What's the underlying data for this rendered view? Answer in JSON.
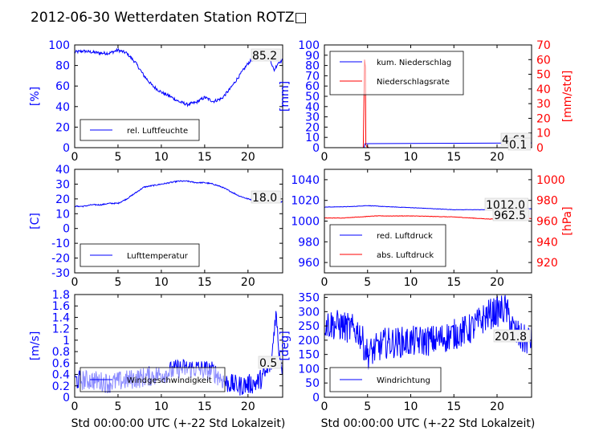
{
  "figure": {
    "title": "2012-06-30 Wetterdaten Station ROTZ",
    "title_glyph": "□",
    "xlabel": "Std 00:00:00 UTC (+-22 Std Lokalzeit)"
  },
  "colors": {
    "left_axis": "#0000ff",
    "right_axis": "#ff0000",
    "text": "#000000"
  },
  "chart_data": [
    {
      "id": "humidity",
      "type": "line",
      "xlim": [
        0,
        24
      ],
      "xticks": [
        0,
        5,
        10,
        15,
        20
      ],
      "ylim": [
        0,
        100
      ],
      "yticks": [
        0,
        20,
        40,
        60,
        80,
        100
      ],
      "ylabel": "[%]",
      "legend_position": "lower-left",
      "annotation": "85.2",
      "series": [
        {
          "name": "rel. Luftfeuchte",
          "color": "#0000ff",
          "axis": "left",
          "noise": 1.5,
          "x": [
            0,
            1,
            2,
            3,
            4,
            5,
            6,
            7,
            8,
            9,
            10,
            11,
            12,
            13,
            14,
            15,
            16,
            17,
            18,
            19,
            20,
            21,
            22,
            22.5,
            23,
            23.5,
            24
          ],
          "y": [
            93,
            94,
            93,
            92,
            92,
            95,
            92,
            83,
            70,
            60,
            54,
            50,
            45,
            42,
            44,
            49,
            45,
            48,
            58,
            70,
            82,
            90,
            95,
            88,
            75,
            83,
            85.2
          ]
        }
      ]
    },
    {
      "id": "precipitation",
      "type": "line",
      "xlim": [
        0,
        24
      ],
      "xticks": [
        0,
        5,
        10,
        15,
        20
      ],
      "ylim": [
        0,
        100
      ],
      "yticks": [
        0,
        10,
        20,
        30,
        40,
        50,
        60,
        70,
        80,
        90,
        100
      ],
      "ylabel": "[mm]",
      "y2lim": [
        0,
        70
      ],
      "y2ticks": [
        0,
        10,
        20,
        30,
        40,
        50,
        60,
        70
      ],
      "y2label": "[mm/std]",
      "legend_position": "top-left",
      "annotation": "4.61",
      "annotation2": "0.1",
      "series": [
        {
          "name": "kum. Niederschlag",
          "color": "#0000ff",
          "axis": "left",
          "noise": 0,
          "x": [
            0,
            4.6,
            4.7,
            4.9,
            24
          ],
          "y": [
            0,
            0,
            3.8,
            3.9,
            4.61
          ]
        },
        {
          "name": "Niederschlagsrate",
          "color": "#ff0000",
          "axis": "right",
          "noise": 0,
          "x": [
            0,
            4.5,
            4.65,
            4.75,
            4.8,
            4.95,
            5.2,
            22.5,
            23,
            23.5,
            24
          ],
          "y": [
            0,
            0,
            60,
            55,
            2,
            0.5,
            0,
            0,
            2,
            0.5,
            0.1
          ]
        }
      ]
    },
    {
      "id": "temperature",
      "type": "line",
      "xlim": [
        0,
        24
      ],
      "xticks": [
        0,
        5,
        10,
        15,
        20
      ],
      "ylim": [
        -30,
        40
      ],
      "yticks": [
        -30,
        -20,
        -10,
        0,
        10,
        20,
        30,
        40
      ],
      "ylabel": "[C]",
      "legend_position": "lower-left",
      "annotation": "18.0",
      "series": [
        {
          "name": "Lufttemperatur",
          "color": "#0000ff",
          "axis": "left",
          "noise": 0.4,
          "x": [
            0,
            1,
            2,
            3,
            4,
            5,
            6,
            7,
            8,
            9,
            10,
            11,
            12,
            13,
            14,
            15,
            16,
            17,
            18,
            19,
            20,
            21,
            22,
            23,
            24
          ],
          "y": [
            15,
            15,
            16,
            16,
            17,
            17,
            20,
            24,
            28,
            29,
            30,
            31,
            32,
            32,
            31,
            31,
            30,
            28,
            25,
            22,
            20,
            19,
            18.5,
            18,
            18
          ]
        }
      ]
    },
    {
      "id": "pressure",
      "type": "line",
      "xlim": [
        0,
        24
      ],
      "xticks": [
        0,
        5,
        10,
        15,
        20
      ],
      "ylim": [
        950,
        1050
      ],
      "yticks": [
        960,
        980,
        1000,
        1020,
        1040
      ],
      "y2lim": [
        910,
        1010
      ],
      "y2ticks": [
        920,
        940,
        960,
        980,
        1000
      ],
      "y2label": "[hPa]",
      "legend_position": "lower-left",
      "annotation": "1012.0",
      "annotation2": "962.5",
      "series": [
        {
          "name": "red. Luftdruck",
          "color": "#0000ff",
          "axis": "left",
          "noise": 0.2,
          "x": [
            0,
            3,
            5,
            7,
            10,
            15,
            20,
            24
          ],
          "y": [
            1013.5,
            1014,
            1015,
            1014,
            1013,
            1011,
            1011,
            1012
          ]
        },
        {
          "name": "abs. Luftdruck",
          "color": "#ff0000",
          "axis": "right",
          "noise": 0.2,
          "x": [
            0,
            2,
            4,
            6,
            10,
            15,
            19,
            24
          ],
          "y": [
            963,
            963,
            964,
            965,
            965,
            964,
            962,
            962.5
          ]
        }
      ]
    },
    {
      "id": "windspeed",
      "type": "line",
      "xlim": [
        0,
        24
      ],
      "xticks": [
        0,
        5,
        10,
        15,
        20
      ],
      "ylim": [
        0,
        1.8
      ],
      "yticks": [
        0,
        0.2,
        0.4,
        0.6,
        0.8,
        1.0,
        1.2,
        1.4,
        1.6,
        1.8
      ],
      "ylabel": "[m/s]",
      "legend_position": "lower-left",
      "annotation": "0.5",
      "series": [
        {
          "name": "Windgeschwindigkeit",
          "color": "#0000ff",
          "axis": "left",
          "noise": 0.18,
          "x": [
            0,
            2,
            4,
            6,
            8,
            10,
            12,
            14,
            16,
            17.5,
            19,
            21,
            22,
            22.7,
            23.2,
            23.6,
            24
          ],
          "y": [
            0.3,
            0.3,
            0.25,
            0.3,
            0.35,
            0.4,
            0.5,
            0.5,
            0.45,
            0.25,
            0.2,
            0.25,
            0.4,
            0.6,
            1.5,
            0.8,
            0.5
          ]
        }
      ]
    },
    {
      "id": "winddirection",
      "type": "line",
      "xlim": [
        0,
        24
      ],
      "xticks": [
        0,
        5,
        10,
        15,
        20
      ],
      "ylim": [
        0,
        360
      ],
      "yticks": [
        0,
        50,
        100,
        150,
        200,
        250,
        300,
        350
      ],
      "ylabel": "[deg]",
      "legend_position": "lower-left",
      "annotation": "201.8",
      "series": [
        {
          "name": "Windrichtung",
          "color": "#0000ff",
          "axis": "left",
          "noise": 55,
          "x": [
            0,
            2,
            4,
            5,
            7,
            10,
            13,
            15,
            17,
            19,
            20,
            21,
            22,
            23,
            24
          ],
          "y": [
            260,
            250,
            230,
            150,
            190,
            195,
            200,
            220,
            240,
            290,
            300,
            310,
            230,
            200,
            201.8
          ]
        }
      ]
    }
  ]
}
